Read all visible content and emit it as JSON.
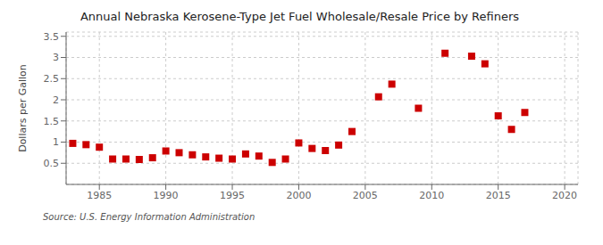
{
  "chart_data": {
    "type": "scatter",
    "title": "Annual Nebraska Kerosene-Type Jet Fuel Wholesale/Resale Price by Refiners",
    "y_label": "Dollars per Gallon",
    "annotations": [
      "Source: U.S. Energy Information Administration"
    ],
    "color": "#cc0000",
    "marker": "square",
    "grid": true,
    "xlim": [
      1982.5,
      2021
    ],
    "ylim": [
      0.0,
      3.6
    ],
    "xticks": [
      1985,
      1990,
      1995,
      2000,
      2005,
      2010,
      2015,
      2020
    ],
    "yticks": [
      0.5,
      1.0,
      1.5,
      2.0,
      2.5,
      3.0,
      3.5
    ],
    "x": [
      1983,
      1984,
      1985,
      1986,
      1987,
      1988,
      1989,
      1990,
      1991,
      1992,
      1993,
      1994,
      1995,
      1996,
      1997,
      1998,
      1999,
      2000,
      2001,
      2002,
      2003,
      2004,
      2006,
      2007,
      2009,
      2011,
      2013,
      2014,
      2015,
      2016,
      2017
    ],
    "values": [
      0.97,
      0.94,
      0.88,
      0.6,
      0.6,
      0.59,
      0.63,
      0.79,
      0.75,
      0.7,
      0.65,
      0.62,
      0.6,
      0.72,
      0.67,
      0.52,
      0.6,
      0.98,
      0.85,
      0.8,
      0.93,
      1.25,
      2.07,
      2.37,
      1.8,
      3.1,
      3.03,
      2.85,
      1.62,
      1.3,
      1.7
    ]
  }
}
